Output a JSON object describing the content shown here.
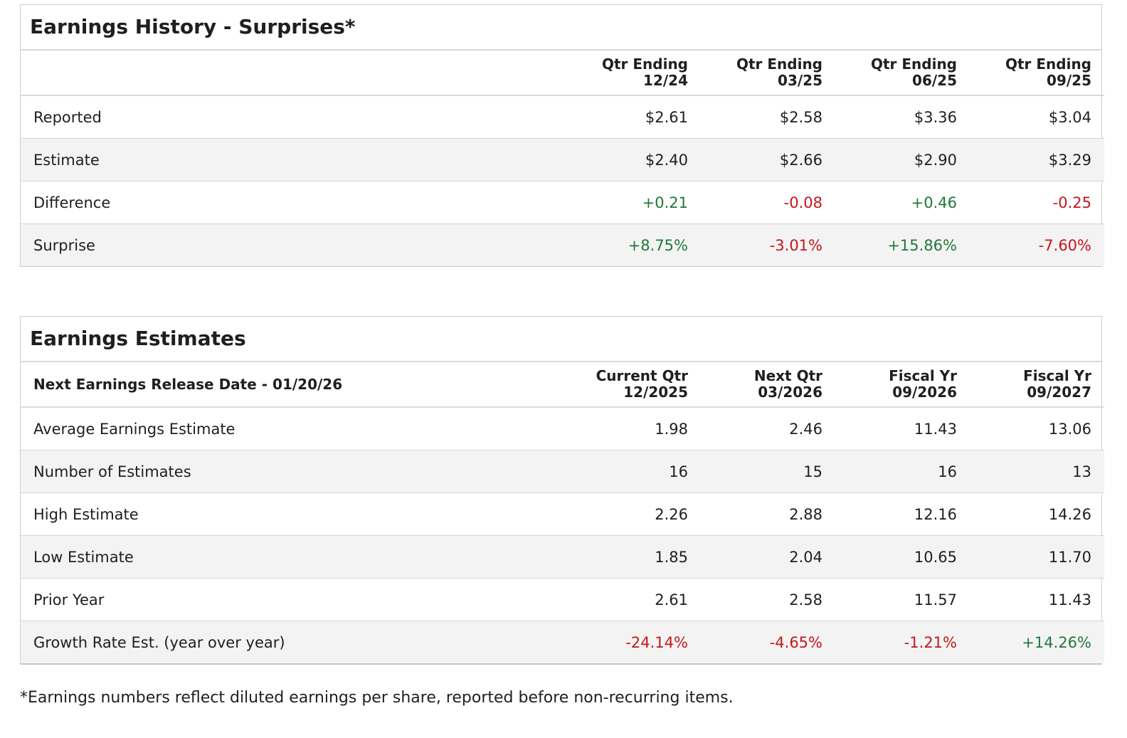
{
  "history": {
    "title": "Earnings History - Surprises*",
    "columns": [
      {
        "line1": "Qtr Ending",
        "line2": "12/24"
      },
      {
        "line1": "Qtr Ending",
        "line2": "03/25"
      },
      {
        "line1": "Qtr Ending",
        "line2": "06/25"
      },
      {
        "line1": "Qtr Ending",
        "line2": "09/25"
      }
    ],
    "rows": [
      {
        "label": "Reported",
        "values": [
          "$2.61",
          "$2.58",
          "$3.36",
          "$3.04"
        ]
      },
      {
        "label": "Estimate",
        "values": [
          "$2.40",
          "$2.66",
          "$2.90",
          "$3.29"
        ]
      },
      {
        "label": "Difference",
        "values": [
          "+0.21",
          "-0.08",
          "+0.46",
          "-0.25"
        ]
      },
      {
        "label": "Surprise",
        "values": [
          "+8.75%",
          "-3.01%",
          "+15.86%",
          "-7.60%"
        ]
      }
    ]
  },
  "estimates": {
    "title": "Earnings Estimates",
    "header_label": "Next Earnings Release Date - 01/20/26",
    "columns": [
      {
        "line1": "Current Qtr",
        "line2": "12/2025"
      },
      {
        "line1": "Next Qtr",
        "line2": "03/2026"
      },
      {
        "line1": "Fiscal Yr",
        "line2": "09/2026"
      },
      {
        "line1": "Fiscal Yr",
        "line2": "09/2027"
      }
    ],
    "rows": [
      {
        "label": "Average Earnings Estimate",
        "values": [
          "1.98",
          "2.46",
          "11.43",
          "13.06"
        ]
      },
      {
        "label": "Number of Estimates",
        "values": [
          "16",
          "15",
          "16",
          "13"
        ]
      },
      {
        "label": "High Estimate",
        "values": [
          "2.26",
          "2.88",
          "12.16",
          "14.26"
        ]
      },
      {
        "label": "Low Estimate",
        "values": [
          "1.85",
          "2.04",
          "10.65",
          "11.70"
        ]
      },
      {
        "label": "Prior Year",
        "values": [
          "2.61",
          "2.58",
          "11.57",
          "11.43"
        ]
      },
      {
        "label": "Growth Rate Est. (year over year)",
        "values": [
          "-24.14%",
          "-4.65%",
          "-1.21%",
          "+14.26%"
        ]
      }
    ]
  },
  "footnote": "*Earnings numbers reflect diluted earnings per share, reported before non-recurring items.",
  "colors": {
    "positive": "#21773a",
    "negative": "#c4161c",
    "row_alt_bg": "#f3f3f3",
    "border": "#d6d6d6"
  }
}
